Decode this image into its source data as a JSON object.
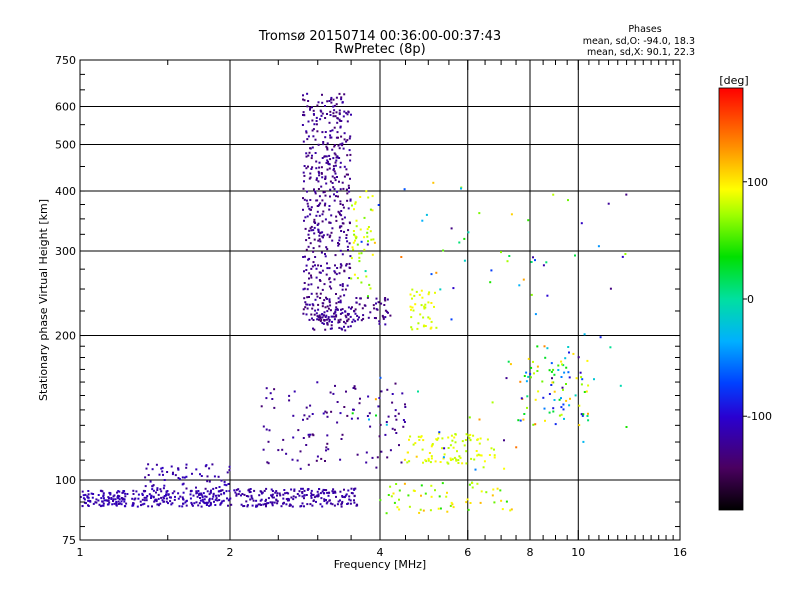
{
  "chart_data": {
    "type": "scatter",
    "title": "Tromsø 20150714 00:36:00-00:37:43",
    "subtitle": "RwPretec (8p)",
    "xlabel": "Frequency [MHz]",
    "ylabel": "Stationary phase Virtual Height [km]",
    "xscale": "log",
    "yscale": "log",
    "xlim": [
      1,
      16
    ],
    "ylim": [
      75,
      750
    ],
    "xticks": [
      1,
      2,
      4,
      6,
      8,
      10,
      16
    ],
    "xtick_labels": [
      "1",
      "2",
      "4",
      "6",
      "8",
      "10",
      "16"
    ],
    "yticks": [
      75,
      100,
      200,
      300,
      400,
      500,
      600,
      750
    ],
    "ytick_labels": [
      "75",
      "100",
      "200",
      "300",
      "400",
      "500",
      "600",
      "750"
    ],
    "grid": true,
    "phases_box": {
      "title": "Phases",
      "line1": "mean, sd,O: -94.0, 18.3",
      "line2": "mean, sd,X:  90.1, 22.3"
    },
    "colorbar": {
      "label": "[deg]",
      "min": -180,
      "max": 180,
      "ticks": [
        100,
        0,
        -100
      ],
      "tick_labels": [
        "100",
        "0",
        "-100"
      ]
    },
    "clusters": [
      {
        "x": [
          1.0,
          2.0
        ],
        "y": [
          88,
          95
        ],
        "phase": [
          -120,
          -105
        ],
        "n": 280
      },
      {
        "x": [
          1.35,
          2.0
        ],
        "y": [
          95,
          108
        ],
        "phase": [
          -125,
          -105
        ],
        "n": 70
      },
      {
        "x": [
          2.0,
          3.6
        ],
        "y": [
          88,
          96
        ],
        "phase": [
          -125,
          -110
        ],
        "n": 220
      },
      {
        "x": [
          2.8,
          3.5
        ],
        "y": [
          205,
          640
        ],
        "phase": [
          -140,
          -115
        ],
        "n": 520
      },
      {
        "x": [
          3.0,
          4.2
        ],
        "y": [
          210,
          240
        ],
        "phase": [
          -140,
          -115
        ],
        "n": 100
      },
      {
        "x": [
          3.5,
          3.9
        ],
        "y": [
          250,
          400
        ],
        "phase": [
          60,
          100
        ],
        "n": 45
      },
      {
        "x": [
          2.3,
          4.5
        ],
        "y": [
          105,
          160
        ],
        "phase": [
          -140,
          -110
        ],
        "n": 120
      },
      {
        "x": [
          4.6,
          5.2
        ],
        "y": [
          205,
          250
        ],
        "phase": [
          75,
          100
        ],
        "n": 40
      },
      {
        "x": [
          4.5,
          6.8
        ],
        "y": [
          108,
          125
        ],
        "phase": [
          75,
          100
        ],
        "n": 90
      },
      {
        "x": [
          4.0,
          7.5
        ],
        "y": [
          85,
          100
        ],
        "phase": [
          40,
          120
        ],
        "n": 60
      },
      {
        "x": [
          7.5,
          10.5
        ],
        "y": [
          130,
          190
        ],
        "phase": [
          -140,
          140
        ],
        "n": 90
      },
      {
        "x": [
          3.5,
          12.5
        ],
        "y": [
          100,
          420
        ],
        "phase": [
          -140,
          140
        ],
        "n": 90
      }
    ]
  }
}
